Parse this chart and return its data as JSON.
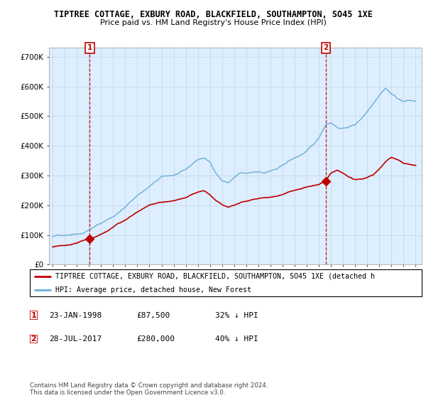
{
  "title": "TIPTREE COTTAGE, EXBURY ROAD, BLACKFIELD, SOUTHAMPTON, SO45 1XE",
  "subtitle": "Price paid vs. HM Land Registry's House Price Index (HPI)",
  "ylabel_ticks": [
    "£0",
    "£100K",
    "£200K",
    "£300K",
    "£400K",
    "£500K",
    "£600K",
    "£700K"
  ],
  "ytick_values": [
    0,
    100000,
    200000,
    300000,
    400000,
    500000,
    600000,
    700000
  ],
  "ylim": [
    0,
    730000
  ],
  "hpi_color": "#6baed6",
  "price_color": "#c00000",
  "vline_color": "#c00000",
  "chart_bg": "#ddeeff",
  "purchase1": {
    "date_label": "23-JAN-1998",
    "x": 1998.06,
    "price": 87500,
    "label": "1"
  },
  "purchase2": {
    "date_label": "28-JUL-2017",
    "x": 2017.57,
    "price": 280000,
    "label": "2"
  },
  "legend_line1": "TIPTREE COTTAGE, EXBURY ROAD, BLACKFIELD, SOUTHAMPTON, SO45 1XE (detached h",
  "legend_line2": "HPI: Average price, detached house, New Forest",
  "footer": "Contains HM Land Registry data © Crown copyright and database right 2024.\nThis data is licensed under the Open Government Licence v3.0.",
  "table_rows": [
    {
      "num": "1",
      "date": "23-JAN-1998",
      "price": "£87,500",
      "hpi": "32% ↓ HPI"
    },
    {
      "num": "2",
      "date": "28-JUL-2017",
      "price": "£280,000",
      "hpi": "40% ↓ HPI"
    }
  ],
  "background_color": "#ffffff",
  "grid_color": "#c8d8e8"
}
